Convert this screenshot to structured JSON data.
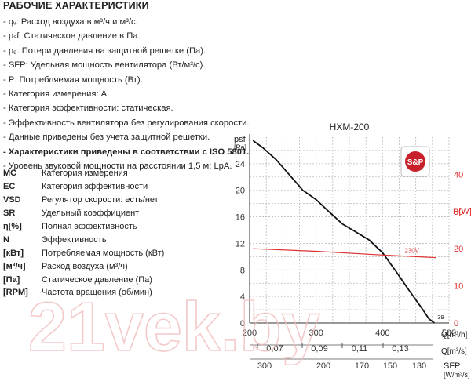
{
  "title": "РАБОЧИЕ ХАРАКТЕРИСТИКИ",
  "characteristics": [
    {
      "text": "- qᵥ: Расход воздуха в м³/ч и м³/с.",
      "bold": false
    },
    {
      "text": "- pₛf: Статическое давление в Па.",
      "bold": false
    },
    {
      "text": "- p₉: Потери давления на защитной решетке (Па).",
      "bold": false
    },
    {
      "text": "- SFP: Удельная мощность вентилятора (Вт/м³/с).",
      "bold": false
    },
    {
      "text": "- P: Потребляемая мощность (Вт).",
      "bold": false
    },
    {
      "text": "- Категория измерения: A.",
      "bold": false
    },
    {
      "text": "- Категория эффективности: статическая.",
      "bold": false
    },
    {
      "text": "- Эффективность вентилятора без регулирования скорости.",
      "bold": false
    },
    {
      "text": "- Данные приведены без учета защитной решетки.",
      "bold": false
    },
    {
      "text": "- Характеристики приведены в соответствии с ISO 5801.",
      "bold": true
    },
    {
      "text": "- Уровень звуковой мощности на расстоянии 1,5 м: LpA.",
      "bold": false
    }
  ],
  "legend": [
    {
      "key": "MC",
      "desc": "Категория измерения"
    },
    {
      "key": "EC",
      "desc": "Категория эффективности"
    },
    {
      "key": "VSD",
      "desc": "Регулятор скорости: есть/нет"
    },
    {
      "key": "SR",
      "desc": "Удельный коэффициент"
    },
    {
      "key": "η[%]",
      "desc": "Полная эффективность"
    },
    {
      "key": "N",
      "desc": "Эффективность"
    },
    {
      "key": "[кВт]",
      "desc": "Потребляемая мощность (кВт)"
    },
    {
      "key": "[м³/ч]",
      "desc": "Расход воздуха (м³/ч)"
    },
    {
      "key": "[Па]",
      "desc": "Статическое давление (Па)"
    },
    {
      "key": "[RPM]",
      "desc": "Частота вращения (об/мин)"
    }
  ],
  "logo_text": "S&P",
  "watermark_text": "21vek.by",
  "colors": {
    "pressure_curve": "#111111",
    "power_curve": "#e03030",
    "grid": "#bbbbbb",
    "red_axis": "#e03030"
  },
  "chart_data": {
    "type": "line",
    "title": "HXM-200",
    "x_label": "Q[m³/h]",
    "x_range": [
      200,
      500
    ],
    "x_ticks": [
      "200",
      "300",
      "400",
      "500"
    ],
    "x2_label": "Q[m³/s]",
    "x2_ticks": [
      "0,07",
      "0,09",
      "0,11",
      "0,13"
    ],
    "x3_label": "SFP",
    "x3_unit": "[W/m³/s]",
    "x3_ticks": [
      "300",
      "200",
      "170",
      "150",
      "130"
    ],
    "y_label": "psf",
    "y_unit": "[Pa]",
    "y_range": [
      0,
      28
    ],
    "y_ticks": [
      "0",
      "4",
      "8",
      "12",
      "16",
      "20",
      "24"
    ],
    "y2_label": "P[W]",
    "y2_range": [
      0,
      50
    ],
    "y2_ticks": [
      "0",
      "10",
      "20",
      "30",
      "40"
    ],
    "grid": true,
    "series": [
      {
        "name": "",
        "axis": "left",
        "color": "#111111",
        "x": [
          205,
          220,
          240,
          260,
          280,
          300,
          320,
          340,
          360,
          380,
          400,
          420,
          440,
          460,
          470,
          478
        ],
        "y": [
          27.5,
          26.4,
          24.6,
          22.3,
          20.0,
          18.6,
          16.7,
          14.9,
          13.7,
          12.5,
          10.6,
          7.8,
          4.9,
          2.1,
          0.6,
          0
        ]
      },
      {
        "name": "230V",
        "axis": "right",
        "color": "#e03030",
        "x": [
          205,
          300,
          400,
          480
        ],
        "y": [
          20.0,
          19.3,
          18.3,
          17.6
        ]
      }
    ],
    "annotations": [
      {
        "text": "230V",
        "color": "#e03030"
      },
      {
        "text": "39",
        "color": "#111111"
      }
    ]
  }
}
